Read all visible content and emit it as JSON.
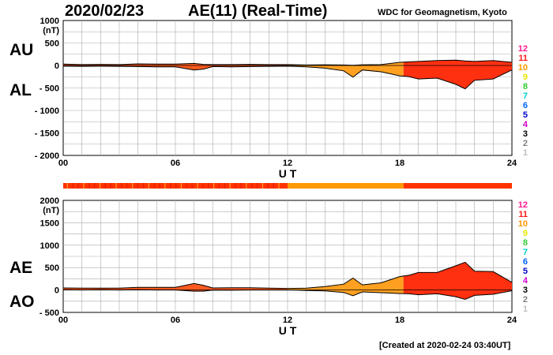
{
  "header": {
    "date": "2020/02/23",
    "title": "AE(11) (Real-Time)",
    "source": "WDC for Geomagnetism, Kyoto"
  },
  "footer": {
    "created": "[Created at 2020-02-24 03:40UT]"
  },
  "upper_labels": {
    "au": "AU",
    "al": "AL"
  },
  "lower_labels": {
    "ae": "AE",
    "ao": "AO"
  },
  "station_legend": {
    "items": [
      {
        "label": "12",
        "color": "#ff1a8c"
      },
      {
        "label": "11",
        "color": "#ff1a1a"
      },
      {
        "label": "10",
        "color": "#ff9900"
      },
      {
        "label": "9",
        "color": "#e6e600"
      },
      {
        "label": "8",
        "color": "#33cc33"
      },
      {
        "label": "7",
        "color": "#00cccc"
      },
      {
        "label": "6",
        "color": "#0066ff"
      },
      {
        "label": "5",
        "color": "#0000cc"
      },
      {
        "label": "4",
        "color": "#cc00cc"
      },
      {
        "label": "3",
        "color": "#000000"
      },
      {
        "label": "2",
        "color": "#808080"
      },
      {
        "label": "1",
        "color": "#c0c0c0"
      }
    ]
  },
  "chart_data": [
    {
      "type": "area",
      "title": "AU / AL",
      "xlabel": "U T",
      "ylabel": "(nT)",
      "xlim": [
        0,
        24
      ],
      "ylim": [
        -2000,
        1000
      ],
      "x_ticks": [
        "00",
        "06",
        "12",
        "18",
        "24"
      ],
      "y_ticks": [
        "1000",
        "500",
        "0",
        "- 500",
        "- 1000",
        "- 1500",
        "- 2000"
      ],
      "grid": true,
      "x": [
        0,
        1,
        2,
        3,
        4,
        5,
        6,
        7,
        7.5,
        8,
        9,
        10,
        11,
        12,
        13,
        14,
        15,
        15.5,
        16,
        17,
        18,
        18.5,
        19,
        20,
        21,
        21.5,
        22,
        23,
        24
      ],
      "series": [
        {
          "name": "AU",
          "values": [
            30,
            20,
            25,
            20,
            35,
            30,
            30,
            45,
            25,
            20,
            20,
            25,
            20,
            20,
            10,
            15,
            10,
            5,
            15,
            20,
            70,
            80,
            90,
            110,
            120,
            100,
            90,
            110,
            70
          ]
        },
        {
          "name": "AL",
          "values": [
            -15,
            -20,
            -15,
            -20,
            -25,
            -30,
            -30,
            -100,
            -80,
            -25,
            -30,
            -25,
            -20,
            -15,
            -30,
            -60,
            -120,
            -260,
            -100,
            -140,
            -230,
            -250,
            -300,
            -280,
            -420,
            -520,
            -330,
            -300,
            -100
          ]
        }
      ],
      "station_count_color": [
        "#ff3300",
        "#ff9900",
        "#ff3300"
      ],
      "station_count_breaks": [
        0,
        12,
        18.2,
        24
      ]
    },
    {
      "type": "area",
      "title": "AE / AO",
      "xlabel": "U T",
      "ylabel": "(nT)",
      "xlim": [
        0,
        24
      ],
      "ylim": [
        -500,
        2000
      ],
      "x_ticks": [
        "00",
        "06",
        "12",
        "18",
        "24"
      ],
      "y_ticks": [
        "2000",
        "1500",
        "1000",
        "500",
        "0",
        "- 500"
      ],
      "grid": true,
      "x": [
        0,
        1,
        2,
        3,
        4,
        5,
        6,
        7,
        7.5,
        8,
        9,
        10,
        11,
        12,
        13,
        14,
        15,
        15.5,
        16,
        17,
        18,
        18.5,
        19,
        20,
        21,
        21.5,
        22,
        23,
        24
      ],
      "series": [
        {
          "name": "AE",
          "values": [
            45,
            40,
            40,
            40,
            60,
            60,
            60,
            145,
            105,
            45,
            50,
            50,
            40,
            35,
            40,
            75,
            130,
            265,
            115,
            160,
            300,
            330,
            390,
            390,
            540,
            620,
            420,
            410,
            170
          ]
        },
        {
          "name": "AO",
          "values": [
            7,
            0,
            5,
            0,
            5,
            0,
            0,
            -27,
            -27,
            -2,
            -5,
            0,
            0,
            2,
            -10,
            -22,
            -55,
            -127,
            -42,
            -60,
            -80,
            -85,
            -105,
            -85,
            -150,
            -210,
            -120,
            -95,
            -15
          ]
        }
      ]
    }
  ]
}
